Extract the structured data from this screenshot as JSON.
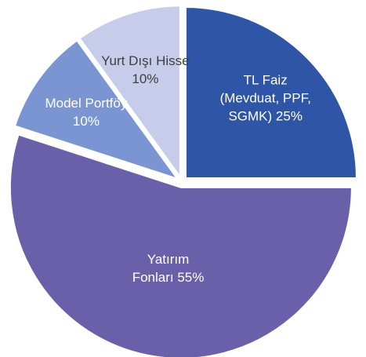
{
  "chart_data": {
    "type": "pie",
    "categories": [
      "TL Faiz (Mevduat, PPF, SGMK)",
      "Yatırım Fonları",
      "Model Portföy",
      "Yurt Dışı Hisse"
    ],
    "values": [
      25,
      55,
      10,
      10
    ],
    "value_labels": [
      "25%",
      "55%",
      "10%",
      "10%"
    ],
    "colors": [
      "#2f56a6",
      "#6a60aa",
      "#7a95d2",
      "#c6cce9"
    ]
  }
}
